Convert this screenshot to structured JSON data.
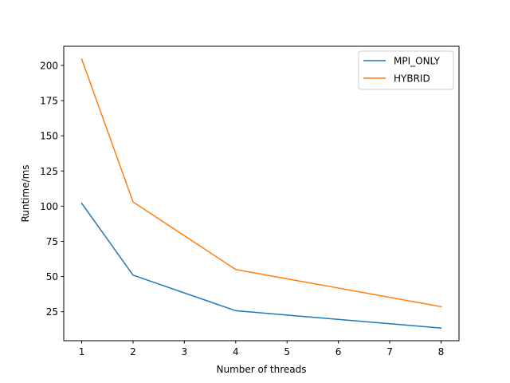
{
  "chart_data": {
    "type": "line",
    "title": "",
    "xlabel": "Number of threads",
    "ylabel": "Runtime/ms",
    "xlim": [
      0.65,
      8.35
    ],
    "ylim": [
      4.4,
      213.6
    ],
    "x_ticks": [
      1,
      2,
      3,
      4,
      5,
      6,
      7,
      8
    ],
    "y_ticks": [
      25,
      50,
      75,
      100,
      125,
      150,
      175,
      200
    ],
    "grid": false,
    "legend_position": "top-right",
    "series": [
      {
        "name": "MPI_ONLY",
        "color": "#1f77b4",
        "x": [
          1,
          2,
          4,
          8
        ],
        "y": [
          102,
          51,
          25.7,
          13.4
        ]
      },
      {
        "name": "HYBRID",
        "color": "#ff7f0e",
        "x": [
          1,
          2,
          4,
          8
        ],
        "y": [
          204.5,
          103,
          55,
          28.6
        ]
      }
    ]
  }
}
